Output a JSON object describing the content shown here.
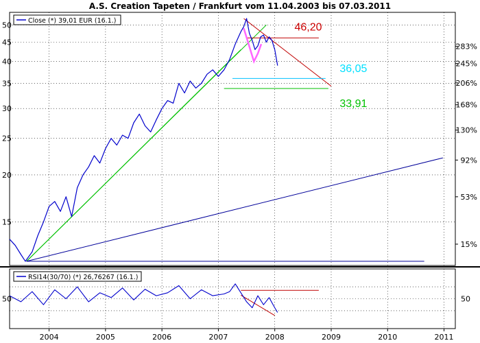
{
  "chart_data": [
    {
      "type": "line",
      "title": "A.S. Creation Tapeten / Frankfurt vom 11.04.2003 bis 07.03.2011",
      "y_scale": "log",
      "ylim": [
        11.5,
        54
      ],
      "xlim": [
        2003.3,
        2011.2
      ],
      "grid": true,
      "legend": {
        "text": "Close (*) 39,01 EUR (16.1.)",
        "placement": "top-left"
      },
      "y_ticks": [
        15,
        20,
        25,
        30,
        35,
        40,
        45,
        50
      ],
      "y_tick_labels": [
        "15",
        "20",
        "25",
        "30",
        "35",
        "40",
        "45",
        "50"
      ],
      "right_ticks": [
        {
          "value": 13.1,
          "label": "15%"
        },
        {
          "value": 17.5,
          "label": "53%"
        },
        {
          "value": 21.9,
          "label": "92%"
        },
        {
          "value": 26.3,
          "label": "130%"
        },
        {
          "value": 30.7,
          "label": "168%"
        },
        {
          "value": 35.1,
          "label": "206%"
        },
        {
          "value": 39.5,
          "label": "245%"
        },
        {
          "value": 43.9,
          "label": "283%"
        }
      ],
      "x_ticks": [
        2004,
        2005,
        2006,
        2007,
        2008,
        2009,
        2010,
        2011
      ],
      "x_tick_labels": [
        "2004",
        "2005",
        "2006",
        "2007",
        "2008",
        "2009",
        "2010",
        "2011"
      ],
      "series": [
        {
          "name": "Close (*) 39,01 EUR (16.1.)",
          "color": "#0000cc",
          "x": [
            2003.3,
            2003.4,
            2003.5,
            2003.58,
            2003.7,
            2003.8,
            2003.9,
            2004.0,
            2004.1,
            2004.2,
            2004.3,
            2004.4,
            2004.5,
            2004.6,
            2004.7,
            2004.8,
            2004.9,
            2005.0,
            2005.1,
            2005.2,
            2005.3,
            2005.4,
            2005.5,
            2005.6,
            2005.7,
            2005.8,
            2005.9,
            2006.0,
            2006.1,
            2006.2,
            2006.3,
            2006.4,
            2006.5,
            2006.6,
            2006.7,
            2006.8,
            2006.9,
            2007.0,
            2007.1,
            2007.2,
            2007.3,
            2007.4,
            2007.45,
            2007.5,
            2007.55,
            2007.6,
            2007.65,
            2007.7,
            2007.75,
            2007.8,
            2007.85,
            2007.9,
            2007.95,
            2008.0,
            2008.05
          ],
          "y": [
            13.5,
            13.0,
            12.3,
            11.8,
            12.5,
            13.8,
            15.0,
            16.5,
            17.0,
            16.0,
            17.5,
            15.5,
            18.5,
            20.0,
            21.0,
            22.5,
            21.5,
            23.5,
            25.0,
            24.0,
            25.5,
            25.0,
            27.5,
            29.0,
            27.0,
            26.0,
            28.0,
            30.0,
            31.5,
            31.0,
            35.0,
            33.0,
            35.5,
            34.0,
            35.0,
            37.0,
            38.0,
            36.5,
            38.0,
            40.5,
            44.5,
            48.0,
            49.5,
            52.0,
            47.5,
            45.5,
            43.0,
            44.0,
            46.5,
            47.0,
            45.0,
            46.5,
            45.5,
            43.0,
            39.0
          ]
        }
      ],
      "lines": [
        {
          "color": "#00c000",
          "x": [
            2003.6,
            2007.85
          ],
          "y": [
            11.8,
            50.0
          ]
        },
        {
          "color": "#00c000",
          "x": [
            2003.6,
            2007.4
          ],
          "y": [
            11.8,
            43.0
          ]
        },
        {
          "color": "#000099",
          "x": [
            2003.6,
            2010.98
          ],
          "y": [
            11.8,
            22.2
          ]
        },
        {
          "color": "#000099",
          "x": [
            2003.6,
            2010.65
          ],
          "y": [
            11.8,
            11.8
          ]
        },
        {
          "color": "#c00000",
          "x": [
            2007.45,
            2009.0
          ],
          "y": [
            52.0,
            34.4
          ]
        },
        {
          "color": "#c00000",
          "x": [
            2007.5,
            2008.78
          ],
          "y": [
            46.2,
            46.2
          ]
        },
        {
          "color": "#00c0ff",
          "x": [
            2007.25,
            2008.9
          ],
          "y": [
            36.05,
            36.05
          ]
        },
        {
          "color": "#00c000",
          "x": [
            2007.1,
            2008.95
          ],
          "y": [
            33.91,
            33.91
          ]
        },
        {
          "color": "#ff66ff",
          "x": [
            2007.45,
            2007.63,
            2007.7,
            2007.76
          ],
          "y": [
            49.0,
            40.0,
            42.0,
            44.5
          ]
        }
      ],
      "annotations": [
        {
          "text": "46,20",
          "color": "#cc0000",
          "x": 2008.35,
          "y": 48.3
        },
        {
          "text": "36,05",
          "color": "#00e0ff",
          "x": 2009.15,
          "y": 37.5
        },
        {
          "text": "33,91",
          "color": "#00c000",
          "x": 2009.15,
          "y": 30.3
        }
      ]
    },
    {
      "type": "line",
      "legend": {
        "text": "RSI14(30/70) (*) 26,76267 (16.1.)",
        "placement": "top-left"
      },
      "ylim": [
        0,
        100
      ],
      "y_ticks": [
        50
      ],
      "y_tick_labels": [
        "50"
      ],
      "right_ticks": [
        {
          "value": 50,
          "label": "50"
        }
      ],
      "grid": true,
      "series": [
        {
          "name": "RSI14(30/70) (*) 26,76267 (16.1.)",
          "color": "#0000cc",
          "x": [
            2003.3,
            2003.5,
            2003.7,
            2003.9,
            2004.1,
            2004.3,
            2004.5,
            2004.7,
            2004.9,
            2005.1,
            2005.3,
            2005.5,
            2005.7,
            2005.9,
            2006.1,
            2006.3,
            2006.5,
            2006.7,
            2006.9,
            2007.1,
            2007.2,
            2007.3,
            2007.4,
            2007.5,
            2007.6,
            2007.7,
            2007.8,
            2007.9,
            2008.0,
            2008.05
          ],
          "y": [
            55,
            45,
            62,
            40,
            65,
            50,
            70,
            45,
            60,
            52,
            68,
            48,
            66,
            55,
            60,
            72,
            50,
            65,
            55,
            58,
            62,
            75,
            60,
            45,
            35,
            55,
            40,
            52,
            35,
            27
          ]
        }
      ],
      "lines": [
        {
          "color": "#c00000",
          "x": [
            2007.4,
            2008.78
          ],
          "y": [
            64,
            64
          ]
        },
        {
          "color": "#c00000",
          "x": [
            2007.4,
            2008.0
          ],
          "y": [
            56,
            22
          ]
        }
      ]
    }
  ]
}
